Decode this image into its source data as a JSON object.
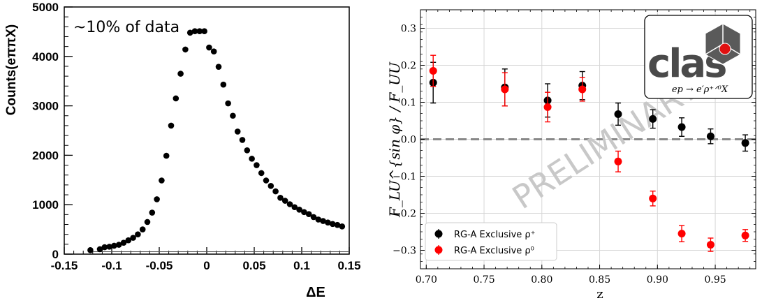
{
  "chart_data": [
    {
      "type": "scatter",
      "title": "",
      "annotation": "~10% of data",
      "xlabel": "ΔE",
      "ylabel": "Counts(eππX)",
      "xlim": [
        -0.15,
        0.15
      ],
      "ylim": [
        0,
        5000
      ],
      "xticks": [
        "-0.15",
        "-0.1",
        "-0.05",
        "0",
        "0.05",
        "0.1",
        "0.15"
      ],
      "yticks": [
        "0",
        "1000",
        "2000",
        "3000",
        "4000",
        "5000"
      ],
      "grid": false,
      "series": [
        {
          "marker_color": "#000000",
          "x": [
            -0.1225,
            -0.1125,
            -0.1075,
            -0.1025,
            -0.0975,
            -0.0925,
            -0.0875,
            -0.0825,
            -0.0775,
            -0.0725,
            -0.0675,
            -0.0625,
            -0.0575,
            -0.0525,
            -0.0475,
            -0.0425,
            -0.0375,
            -0.0325,
            -0.0275,
            -0.0225,
            -0.0175,
            -0.0125,
            -0.0075,
            -0.0025,
            0.0025,
            0.0075,
            0.0125,
            0.0175,
            0.0225,
            0.0275,
            0.0325,
            0.0375,
            0.0425,
            0.0475,
            0.0525,
            0.0575,
            0.0625,
            0.0675,
            0.0725,
            0.0775,
            0.0825,
            0.0875,
            0.0925,
            0.0975,
            0.1025,
            0.1075,
            0.1125,
            0.1175,
            0.1225,
            0.1275,
            0.1325,
            0.1375,
            0.1425
          ],
          "y": [
            80,
            100,
            140,
            150,
            170,
            190,
            230,
            280,
            330,
            400,
            500,
            650,
            840,
            1110,
            1490,
            1990,
            2600,
            3150,
            3650,
            4140,
            4480,
            4510,
            4510,
            4510,
            4180,
            4100,
            3790,
            3430,
            3050,
            2800,
            2480,
            2310,
            2100,
            1930,
            1800,
            1640,
            1490,
            1380,
            1270,
            1140,
            1080,
            1010,
            950,
            900,
            850,
            810,
            750,
            700,
            670,
            640,
            610,
            590,
            560
          ]
        }
      ]
    },
    {
      "type": "scatter",
      "title": "",
      "xlabel": "z",
      "ylabel": "F_LU^{sin φ} / F_UU",
      "xlim": [
        0.695,
        0.985
      ],
      "ylim": [
        -0.35,
        0.35
      ],
      "xticks": [
        "0.70",
        "0.75",
        "0.80",
        "0.85",
        "0.90",
        "0.95"
      ],
      "yticks": [
        "−0.3",
        "−0.2",
        "−0.1",
        "0.0",
        "0.1",
        "0.2",
        "0.3"
      ],
      "grid": true,
      "reference_line_y": 0.0,
      "watermark": "PRELIMINARY",
      "logo_text": "clas",
      "logo_caption": "ep → e′ρ⁺ᐟ⁰X",
      "legend_position": "bottom-left",
      "series": [
        {
          "name": "RG-A Exclusive ρ⁺",
          "color": "#000000",
          "x": [
            0.706,
            0.768,
            0.805,
            0.835,
            0.866,
            0.896,
            0.921,
            0.946,
            0.976
          ],
          "y": [
            0.153,
            0.14,
            0.105,
            0.145,
            0.068,
            0.055,
            0.033,
            0.008,
            -0.01
          ],
          "err": [
            0.055,
            0.05,
            0.045,
            0.038,
            0.03,
            0.025,
            0.025,
            0.02,
            0.022
          ]
        },
        {
          "name": "RG-A Exclusive ρ⁰",
          "color": "#ff0000",
          "x": [
            0.706,
            0.768,
            0.805,
            0.835,
            0.866,
            0.896,
            0.921,
            0.946,
            0.976
          ],
          "y": [
            0.185,
            0.135,
            0.087,
            0.135,
            -0.06,
            -0.16,
            -0.255,
            -0.285,
            -0.26
          ],
          "err": [
            0.042,
            0.045,
            0.04,
            0.032,
            0.028,
            0.02,
            0.022,
            0.018,
            0.016
          ]
        }
      ]
    }
  ]
}
